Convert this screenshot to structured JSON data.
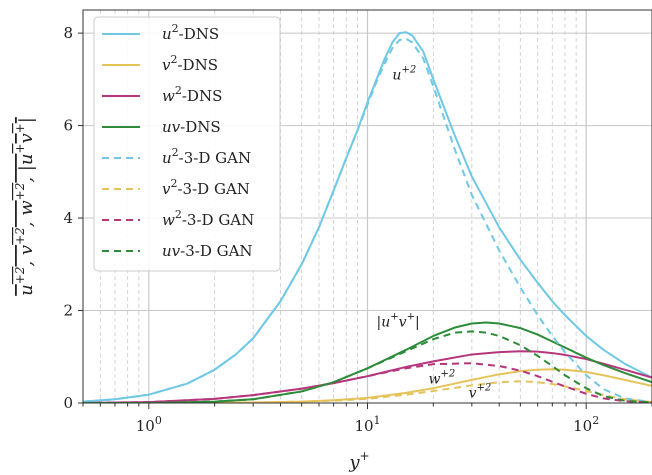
{
  "chart_data": {
    "type": "line",
    "xscale": "log",
    "xlim": [
      0.5,
      200
    ],
    "ylim": [
      0,
      8.5
    ],
    "xlabel": "y+",
    "ylabel": "u+2, v+2, w+2, |u+v+|",
    "xticks": [
      {
        "value": 1,
        "base": "10",
        "exp": "0"
      },
      {
        "value": 10,
        "base": "10",
        "exp": "1"
      },
      {
        "value": 100,
        "base": "10",
        "exp": "2"
      }
    ],
    "yticks": [
      0,
      2,
      4,
      6,
      8
    ],
    "grid": true,
    "legend_position": "top-left",
    "colors": {
      "u2": "#6ec8e6",
      "v2": "#e5c35a",
      "w2": "#b5367c",
      "uv": "#2e8b3a"
    },
    "series": [
      {
        "name": "u2-DNS",
        "key": "u2",
        "style": "solid",
        "x": [
          0.5,
          0.7,
          1,
          1.5,
          2,
          2.5,
          3,
          4,
          5,
          6,
          7,
          8,
          9,
          10,
          11,
          12,
          13,
          14,
          15,
          16,
          18,
          20,
          25,
          30,
          40,
          50,
          60,
          70,
          80,
          100,
          120,
          150,
          200
        ],
        "y": [
          0.03,
          0.08,
          0.18,
          0.42,
          0.72,
          1.05,
          1.4,
          2.2,
          3.0,
          3.8,
          4.6,
          5.3,
          5.9,
          6.5,
          7.0,
          7.45,
          7.8,
          8.0,
          8.02,
          7.95,
          7.6,
          7.0,
          5.8,
          4.9,
          3.8,
          3.1,
          2.6,
          2.2,
          1.9,
          1.45,
          1.15,
          0.85,
          0.55
        ]
      },
      {
        "name": "v2-DNS",
        "key": "v2",
        "style": "solid",
        "x": [
          0.5,
          1,
          2,
          3,
          5,
          7,
          10,
          15,
          20,
          30,
          40,
          50,
          60,
          70,
          80,
          100,
          120,
          150,
          200
        ],
        "y": [
          0.0,
          0.0,
          0.003,
          0.01,
          0.03,
          0.06,
          0.11,
          0.22,
          0.32,
          0.5,
          0.62,
          0.69,
          0.72,
          0.73,
          0.72,
          0.67,
          0.6,
          0.5,
          0.37
        ]
      },
      {
        "name": "w2-DNS",
        "key": "w2",
        "style": "solid",
        "x": [
          0.5,
          1,
          2,
          3,
          5,
          7,
          10,
          15,
          20,
          30,
          40,
          50,
          60,
          70,
          80,
          100,
          120,
          150,
          200
        ],
        "y": [
          0.0,
          0.02,
          0.09,
          0.17,
          0.31,
          0.43,
          0.58,
          0.78,
          0.9,
          1.05,
          1.1,
          1.12,
          1.11,
          1.08,
          1.04,
          0.95,
          0.85,
          0.72,
          0.55
        ]
      },
      {
        "name": "uv-DNS",
        "key": "uv",
        "style": "solid",
        "x": [
          0.5,
          1,
          2,
          3,
          5,
          7,
          10,
          15,
          20,
          25,
          30,
          35,
          40,
          50,
          60,
          70,
          80,
          100,
          120,
          150,
          200
        ],
        "y": [
          0.0,
          0.0,
          0.03,
          0.08,
          0.25,
          0.45,
          0.75,
          1.15,
          1.45,
          1.63,
          1.72,
          1.74,
          1.72,
          1.62,
          1.48,
          1.33,
          1.2,
          0.98,
          0.82,
          0.65,
          0.45
        ]
      },
      {
        "name": "u2-3-D GAN",
        "key": "u2",
        "style": "dashed",
        "x": [
          0.5,
          0.7,
          1,
          1.5,
          2,
          2.5,
          3,
          4,
          5,
          6,
          7,
          8,
          9,
          10,
          11,
          12,
          13,
          14,
          15,
          16,
          18,
          20,
          25,
          30,
          40,
          50,
          60,
          70,
          80,
          100,
          120,
          150,
          200
        ],
        "y": [
          0.03,
          0.08,
          0.18,
          0.42,
          0.72,
          1.05,
          1.4,
          2.2,
          3.0,
          3.8,
          4.6,
          5.3,
          5.9,
          6.45,
          6.95,
          7.35,
          7.68,
          7.85,
          7.88,
          7.8,
          7.45,
          6.85,
          5.5,
          4.5,
          3.3,
          2.5,
          1.9,
          1.45,
          1.1,
          0.6,
          0.3,
          0.1,
          0.02
        ]
      },
      {
        "name": "v2-3-D GAN",
        "key": "v2",
        "style": "dashed",
        "x": [
          0.5,
          1,
          2,
          3,
          5,
          7,
          10,
          15,
          20,
          30,
          40,
          50,
          60,
          70,
          80,
          100,
          120,
          150,
          200
        ],
        "y": [
          0.0,
          0.0,
          0.003,
          0.01,
          0.03,
          0.05,
          0.09,
          0.18,
          0.26,
          0.38,
          0.45,
          0.47,
          0.45,
          0.41,
          0.36,
          0.26,
          0.17,
          0.08,
          0.02
        ]
      },
      {
        "name": "w2-3-D GAN",
        "key": "w2",
        "style": "dashed",
        "x": [
          0.5,
          1,
          2,
          3,
          5,
          7,
          10,
          15,
          20,
          30,
          40,
          50,
          60,
          70,
          80,
          100,
          120,
          150,
          200
        ],
        "y": [
          0.0,
          0.02,
          0.09,
          0.17,
          0.31,
          0.43,
          0.58,
          0.75,
          0.84,
          0.86,
          0.8,
          0.7,
          0.58,
          0.46,
          0.36,
          0.2,
          0.1,
          0.04,
          0.01
        ]
      },
      {
        "name": "uv-3-D GAN",
        "key": "uv",
        "style": "dashed",
        "x": [
          0.5,
          1,
          2,
          3,
          5,
          7,
          10,
          15,
          20,
          25,
          30,
          35,
          40,
          50,
          60,
          70,
          80,
          100,
          120,
          150,
          200
        ],
        "y": [
          0.0,
          0.0,
          0.03,
          0.08,
          0.25,
          0.45,
          0.75,
          1.12,
          1.38,
          1.52,
          1.55,
          1.52,
          1.45,
          1.25,
          1.02,
          0.8,
          0.6,
          0.32,
          0.15,
          0.05,
          0.01
        ]
      }
    ],
    "legend": [
      {
        "base": "u",
        "sup": "2",
        "suffix": "-DNS",
        "key": "u2",
        "style": "solid"
      },
      {
        "base": "v",
        "sup": "2",
        "suffix": "-DNS",
        "key": "v2",
        "style": "solid"
      },
      {
        "base": "w",
        "sup": "2",
        "suffix": "-DNS",
        "key": "w2",
        "style": "solid"
      },
      {
        "base": "uv",
        "sup": "",
        "suffix": "-DNS",
        "key": "uv",
        "style": "solid"
      },
      {
        "base": "u",
        "sup": "2",
        "suffix": "-3-D GAN",
        "key": "u2",
        "style": "dashed"
      },
      {
        "base": "v",
        "sup": "2",
        "suffix": "-3-D GAN",
        "key": "v2",
        "style": "dashed"
      },
      {
        "base": "w",
        "sup": "2",
        "suffix": "-3-D GAN",
        "key": "w2",
        "style": "dashed"
      },
      {
        "base": "uv",
        "sup": "",
        "suffix": "-3-D GAN",
        "key": "uv",
        "style": "dashed"
      }
    ],
    "annotations": [
      {
        "id": "u2",
        "text": "u+2",
        "x": 13.0,
        "y": 7.0
      },
      {
        "id": "uv",
        "text": "|u+v+|",
        "x": 11.0,
        "y": 1.65
      },
      {
        "id": "w2",
        "text": "w+2",
        "x": 19.0,
        "y": 0.42
      },
      {
        "id": "v2",
        "text": "v+2",
        "x": 29.0,
        "y": 0.12
      }
    ]
  }
}
